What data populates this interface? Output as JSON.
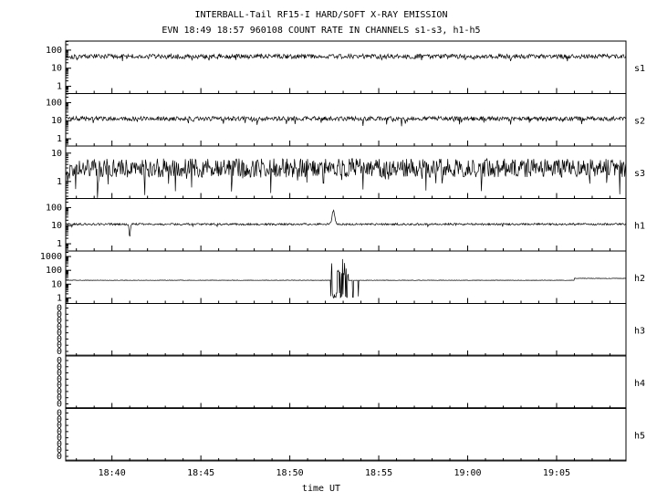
{
  "chart_data": {
    "type": "line",
    "title": "INTERBALL-Tail RF15-I HARD/SOFT X-RAY EMISSION",
    "subtitle": "EVN 18:49 18:57 960108  COUNT RATE IN CHANNELS s1-s3, h1-h5",
    "xlabel": "time UT",
    "legend": "none",
    "grid": false,
    "x_axis": {
      "start_minutes": 1117.4,
      "end_minutes": 1148.9,
      "minor_tick_minutes": 1,
      "major_ticks": [
        {
          "minutes": 1120,
          "label": "18:40"
        },
        {
          "minutes": 1125,
          "label": "18:45"
        },
        {
          "minutes": 1130,
          "label": "18:50"
        },
        {
          "minutes": 1135,
          "label": "18:55"
        },
        {
          "minutes": 1140,
          "label": "19:00"
        },
        {
          "minutes": 1145,
          "label": "19:05"
        }
      ]
    },
    "panels": [
      {
        "id": "s1",
        "scale": "log",
        "ylog_range": [
          -0.4,
          2.5
        ],
        "yticks": [
          {
            "value": 100,
            "label": "100"
          },
          {
            "value": 10,
            "label": "10"
          },
          {
            "value": 1,
            "label": "1"
          }
        ],
        "summary": "steady noisy count rate ~45 c/s",
        "signal": {
          "seed": 101,
          "points": 900,
          "baseline_counts": 45,
          "noise_log": 0.13,
          "down_spike_prob": 0.02,
          "down_spike_depth_log": 0.3,
          "spikes": []
        }
      },
      {
        "id": "s2",
        "scale": "log",
        "ylog_range": [
          -0.4,
          2.5
        ],
        "yticks": [
          {
            "value": 100,
            "label": "100"
          },
          {
            "value": 10,
            "label": "10"
          },
          {
            "value": 1,
            "label": "1"
          }
        ],
        "summary": "steady noisy count rate ~13 c/s",
        "signal": {
          "seed": 102,
          "points": 900,
          "baseline_counts": 13,
          "noise_log": 0.12,
          "down_spike_prob": 0.03,
          "down_spike_depth_log": 0.35,
          "spikes": []
        }
      },
      {
        "id": "s3",
        "scale": "log",
        "ylog_range": [
          -0.6,
          1.25
        ],
        "yticks": [
          {
            "value": 10,
            "label": "10"
          },
          {
            "value": 1,
            "label": "1"
          }
        ],
        "summary": "very spiky rate ~3 c/s, frequent dips toward/below 1 c/s",
        "signal": {
          "seed": 103,
          "points": 900,
          "baseline_counts": 3,
          "noise_log": 0.33,
          "down_spike_prob": 0.07,
          "down_spike_depth_log": 0.7,
          "spikes": [
            {
              "t_minutes": 1119.2,
              "peak_counts": 0.25,
              "width_min": 0.04
            }
          ]
        }
      },
      {
        "id": "h1",
        "scale": "log",
        "ylog_range": [
          -0.4,
          2.5
        ],
        "yticks": [
          {
            "value": 100,
            "label": "100"
          },
          {
            "value": 10,
            "label": "10"
          },
          {
            "value": 1,
            "label": "1"
          }
        ],
        "summary": "steady ~12 c/s with narrow spike to ~70 c/s near 18:52.5 and a dip near 18:41",
        "signal": {
          "seed": 104,
          "points": 900,
          "baseline_counts": 12,
          "noise_log": 0.055,
          "down_spike_prob": 0.01,
          "down_spike_depth_log": 0.25,
          "spikes": [
            {
              "t_minutes": 1132.45,
              "peak_counts": 70,
              "width_min": 0.1
            },
            {
              "t_minutes": 1121.0,
              "peak_counts": 2.2,
              "width_min": 0.05
            }
          ]
        }
      },
      {
        "id": "h2",
        "scale": "log",
        "ylog_range": [
          -0.4,
          3.4
        ],
        "yticks": [
          {
            "value": 1000,
            "label": "1000"
          },
          {
            "value": 100,
            "label": "100"
          },
          {
            "value": 10,
            "label": "10"
          },
          {
            "value": 1,
            "label": "1"
          }
        ],
        "summary": "flat ~19 c/s; strong burst 18:52.3-18:53.3 swinging between ~1 and ~750 c/s; small upward step to ~26 c/s after 19:06",
        "signal": {
          "seed": 105,
          "points": 1100,
          "baseline_counts": 19,
          "noise_log": 0.015,
          "burst": {
            "t0_minutes": 1132.3,
            "t1_minutes": 1133.3,
            "high_min_counts": 40,
            "high_max_counts": 750,
            "low_min_counts": 1,
            "low_max_counts": 2.5
          },
          "post_spikes": [
            {
              "t_minutes": 1133.55,
              "counts": 1.1
            },
            {
              "t_minutes": 1133.85,
              "counts": 1.3
            }
          ],
          "step": {
            "t_minutes": 1146.0,
            "counts": 26
          }
        }
      },
      {
        "id": "h3",
        "scale": "zero",
        "yticks_labels": [
          "0",
          "0",
          "0",
          "0",
          "0",
          "0",
          "0",
          "0"
        ],
        "summary": "no counts, flat at 0",
        "signal": {
          "flat_counts": 0
        }
      },
      {
        "id": "h4",
        "scale": "zero",
        "yticks_labels": [
          "0",
          "0",
          "0",
          "0",
          "0",
          "0",
          "0",
          "0"
        ],
        "summary": "no counts, flat at 0",
        "signal": {
          "flat_counts": 0
        }
      },
      {
        "id": "h5",
        "scale": "zero",
        "yticks_labels": [
          "0",
          "0",
          "0",
          "0",
          "0",
          "0",
          "0",
          "0"
        ],
        "summary": "no counts, flat at 0",
        "signal": {
          "flat_counts": 0
        }
      }
    ],
    "colors": {
      "trace": "#000000",
      "frame": "#000000",
      "background": "#ffffff"
    }
  }
}
